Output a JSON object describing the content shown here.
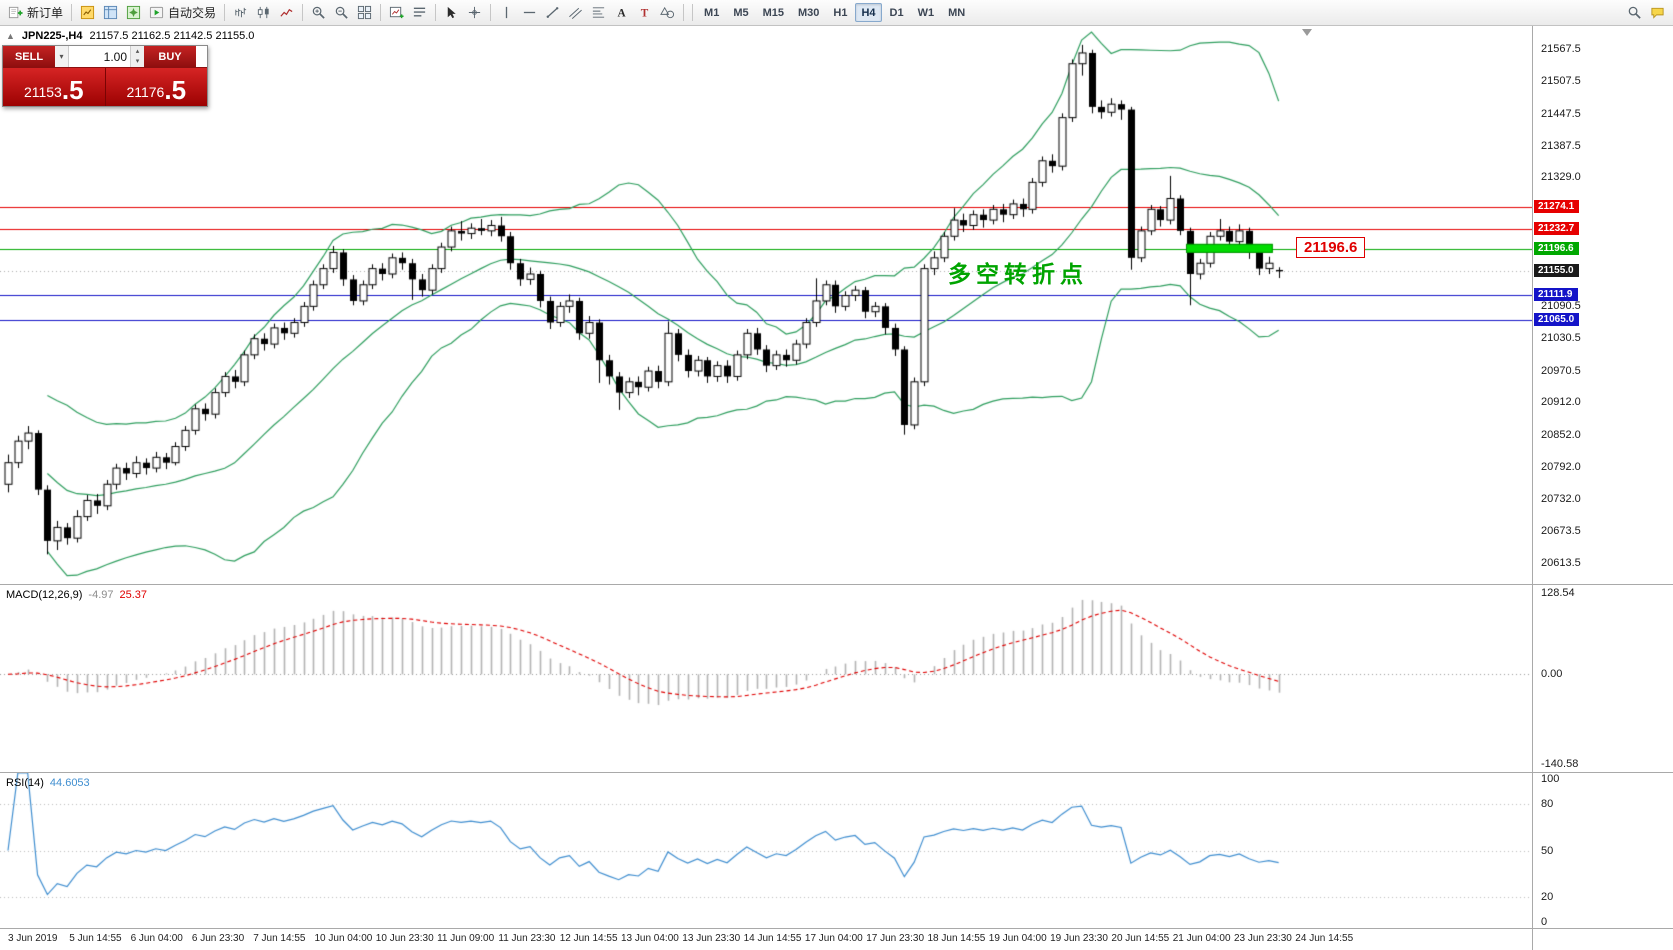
{
  "toolbar": {
    "buttons": [
      {
        "icon": "new-order",
        "label": "新订单"
      },
      {
        "sep": true
      },
      {
        "icon": "market-watch"
      },
      {
        "icon": "data-window"
      },
      {
        "icon": "navigator"
      },
      {
        "icon": "autotrading",
        "label": "自动交易"
      },
      {
        "sep": true
      },
      {
        "icon": "bar-chart"
      },
      {
        "icon": "candlestick-chart"
      },
      {
        "icon": "line-chart"
      },
      {
        "sep": true
      },
      {
        "icon": "zoom-in"
      },
      {
        "icon": "zoom-out"
      },
      {
        "icon": "tile-windows"
      },
      {
        "sep": true
      },
      {
        "icon": "new-chart"
      },
      {
        "icon": "chart-list"
      },
      {
        "sep": true
      },
      {
        "icon": "cursor"
      },
      {
        "icon": "crosshair"
      },
      {
        "sep": true
      },
      {
        "icon": "vertical-line"
      },
      {
        "icon": "horizontal-line"
      },
      {
        "icon": "trendline"
      },
      {
        "icon": "equidistant-channel"
      },
      {
        "icon": "fibonacci"
      },
      {
        "icon": "text"
      },
      {
        "icon": "label"
      },
      {
        "icon": "shapes"
      },
      {
        "sep": true
      }
    ],
    "timeframes": [
      {
        "label": "M1"
      },
      {
        "label": "M5"
      },
      {
        "label": "M15"
      },
      {
        "label": "M30"
      },
      {
        "label": "H1"
      },
      {
        "label": "H4",
        "active": true
      },
      {
        "label": "D1"
      },
      {
        "label": "W1"
      },
      {
        "label": "MN"
      }
    ],
    "right_icons": [
      {
        "icon": "search"
      },
      {
        "icon": "community"
      }
    ]
  },
  "chart": {
    "symbol_info": "JPN225-,H4",
    "ohlc": "21157.5 21162.5 21142.5 21155.0",
    "trade_panel": {
      "sell_label": "SELL",
      "buy_label": "BUY",
      "volume": "1.00",
      "sell_price_main": "21153",
      "sell_price_pips": ".5",
      "buy_price_main": "21176",
      "buy_price_pips": ".5"
    },
    "annotation_text": "多空转折点",
    "price_callout": "21196.6",
    "levels": [
      {
        "price": 21274.1,
        "color": "#e60000"
      },
      {
        "price": 21232.7,
        "color": "#e60000"
      },
      {
        "price": 21196.6,
        "color": "#00a800"
      },
      {
        "price": 21111.9,
        "color": "#1414c8"
      },
      {
        "price": 21065.0,
        "color": "#1414c8"
      }
    ],
    "highlight": {
      "from_index": 120,
      "to_index": 128,
      "price": 21196.6,
      "color": "#00dc00"
    }
  },
  "macd": {
    "name": "MACD(12,26,9)",
    "value_main": "-4.97",
    "value_signal": "25.37",
    "axis_max": "128.54",
    "axis_zero": "0.00",
    "axis_min": "-140.58",
    "range": {
      "max": 128.54,
      "min": -140.58
    }
  },
  "rsi": {
    "name": "RSI(14)",
    "value": "44.6053",
    "levels": [
      80,
      50,
      20
    ],
    "axis": [
      "100",
      "80",
      "50",
      "20",
      "0"
    ]
  },
  "time_axis": [
    "3 Jun 2019",
    "5 Jun 14:55",
    "6 Jun 04:00",
    "6 Jun 23:30",
    "7 Jun 14:55",
    "10 Jun 04:00",
    "10 Jun 23:30",
    "11 Jun 09:00",
    "11 Jun 23:30",
    "12 Jun 14:55",
    "13 Jun 04:00",
    "13 Jun 23:30",
    "14 Jun 14:55",
    "17 Jun 04:00",
    "17 Jun 23:30",
    "18 Jun 14:55",
    "19 Jun 04:00",
    "19 Jun 23:30",
    "20 Jun 14:55",
    "21 Jun 04:00",
    "23 Jun 23:30",
    "24 Jun 14:55"
  ],
  "chart_data": {
    "type": "candlestick",
    "symbol": "JPN225-",
    "timeframe": "H4",
    "title": "JPN225-,H4 21157.5 21162.5 21142.5 21155.0",
    "price_range": {
      "max": 21610,
      "min": 20575
    },
    "axis_price_labels": [
      21567.5,
      21507.5,
      21447.5,
      21387.5,
      21329.0,
      21090.5,
      21030.5,
      20970.5,
      20912.0,
      20852.0,
      20792.0,
      20732.0,
      20673.5,
      20613.5
    ],
    "current_price": 21155.0,
    "indicators": [
      "Bollinger Bands(20,2)",
      "MACD(12,26,9) range 128.54 to -140.58",
      "RSI(14) levels 80/50/20"
    ],
    "horizontal_lines": [
      21274.1,
      21232.7,
      21196.6,
      21111.9,
      21065.0
    ],
    "candles": [
      [
        20760,
        20815,
        20745,
        20800
      ],
      [
        20800,
        20850,
        20790,
        20840
      ],
      [
        20840,
        20868,
        20825,
        20855
      ],
      [
        20855,
        20860,
        20740,
        20750
      ],
      [
        20750,
        20758,
        20630,
        20655
      ],
      [
        20655,
        20692,
        20638,
        20680
      ],
      [
        20680,
        20688,
        20648,
        20660
      ],
      [
        20660,
        20712,
        20652,
        20700
      ],
      [
        20700,
        20740,
        20692,
        20730
      ],
      [
        20730,
        20742,
        20705,
        20720
      ],
      [
        20720,
        20768,
        20712,
        20760
      ],
      [
        20760,
        20798,
        20750,
        20790
      ],
      [
        20790,
        20800,
        20768,
        20780
      ],
      [
        20780,
        20812,
        20772,
        20800
      ],
      [
        20800,
        20808,
        20778,
        20790
      ],
      [
        20790,
        20820,
        20782,
        20810
      ],
      [
        20810,
        20818,
        20788,
        20800
      ],
      [
        20800,
        20838,
        20795,
        20830
      ],
      [
        20830,
        20868,
        20822,
        20860
      ],
      [
        20860,
        20908,
        20852,
        20900
      ],
      [
        20900,
        20910,
        20878,
        20890
      ],
      [
        20890,
        20938,
        20882,
        20930
      ],
      [
        20930,
        20968,
        20922,
        20960
      ],
      [
        20960,
        20972,
        20938,
        20950
      ],
      [
        20950,
        21008,
        20942,
        21000
      ],
      [
        21000,
        21038,
        20992,
        21030
      ],
      [
        21030,
        21040,
        21008,
        21020
      ],
      [
        21020,
        21058,
        21012,
        21050
      ],
      [
        21050,
        21060,
        21028,
        21040
      ],
      [
        21040,
        21068,
        21032,
        21060
      ],
      [
        21060,
        21098,
        21052,
        21090
      ],
      [
        21090,
        21138,
        21082,
        21130
      ],
      [
        21130,
        21168,
        21122,
        21160
      ],
      [
        21160,
        21202,
        21152,
        21190
      ],
      [
        21190,
        21196,
        21128,
        21140
      ],
      [
        21140,
        21148,
        21092,
        21100
      ],
      [
        21100,
        21138,
        21092,
        21130
      ],
      [
        21130,
        21168,
        21122,
        21160
      ],
      [
        21160,
        21170,
        21138,
        21150
      ],
      [
        21150,
        21188,
        21142,
        21180
      ],
      [
        21180,
        21190,
        21158,
        21170
      ],
      [
        21170,
        21178,
        21102,
        21140
      ],
      [
        21140,
        21150,
        21108,
        21120
      ],
      [
        21120,
        21168,
        21112,
        21160
      ],
      [
        21160,
        21208,
        21152,
        21200
      ],
      [
        21200,
        21238,
        21192,
        21230
      ],
      [
        21230,
        21248,
        21212,
        21225
      ],
      [
        21225,
        21244,
        21215,
        21235
      ],
      [
        21235,
        21252,
        21222,
        21230
      ],
      [
        21230,
        21250,
        21220,
        21240
      ],
      [
        21240,
        21256,
        21210,
        21220
      ],
      [
        21220,
        21228,
        21158,
        21170
      ],
      [
        21170,
        21178,
        21128,
        21140
      ],
      [
        21140,
        21162,
        21130,
        21150
      ],
      [
        21150,
        21156,
        21088,
        21100
      ],
      [
        21100,
        21108,
        21048,
        21060
      ],
      [
        21060,
        21098,
        21052,
        21090
      ],
      [
        21090,
        21112,
        21078,
        21100
      ],
      [
        21100,
        21106,
        21028,
        21040
      ],
      [
        21040,
        21072,
        21030,
        21060
      ],
      [
        21060,
        21066,
        20948,
        20990
      ],
      [
        20990,
        21000,
        20945,
        20960
      ],
      [
        20960,
        20968,
        20898,
        20930
      ],
      [
        20930,
        20958,
        20920,
        20950
      ],
      [
        20950,
        20960,
        20925,
        20940
      ],
      [
        20940,
        20978,
        20932,
        20970
      ],
      [
        20970,
        20980,
        20938,
        20950
      ],
      [
        20950,
        21062,
        20942,
        21040
      ],
      [
        21040,
        21048,
        20988,
        21000
      ],
      [
        21000,
        21010,
        20958,
        20970
      ],
      [
        20970,
        20998,
        20960,
        20990
      ],
      [
        20990,
        20996,
        20948,
        20960
      ],
      [
        20960,
        20988,
        20950,
        20980
      ],
      [
        20980,
        20990,
        20948,
        20960
      ],
      [
        20960,
        21008,
        20952,
        21000
      ],
      [
        21000,
        21048,
        20992,
        21040
      ],
      [
        21040,
        21050,
        21000,
        21010
      ],
      [
        21010,
        21018,
        20968,
        20980
      ],
      [
        20980,
        21008,
        20972,
        21000
      ],
      [
        21000,
        21010,
        20978,
        20990
      ],
      [
        20990,
        21028,
        20982,
        21020
      ],
      [
        21020,
        21068,
        21012,
        21060
      ],
      [
        21060,
        21142,
        21052,
        21100
      ],
      [
        21100,
        21138,
        21092,
        21130
      ],
      [
        21130,
        21138,
        21078,
        21090
      ],
      [
        21090,
        21118,
        21082,
        21110
      ],
      [
        21110,
        21128,
        21100,
        21120
      ],
      [
        21120,
        21126,
        21068,
        21080
      ],
      [
        21080,
        21098,
        21070,
        21090
      ],
      [
        21090,
        21096,
        21038,
        21050
      ],
      [
        21050,
        21058,
        20998,
        21010
      ],
      [
        21010,
        21016,
        20852,
        20870
      ],
      [
        20870,
        20958,
        20862,
        20950
      ],
      [
        20950,
        21168,
        20942,
        21160
      ],
      [
        21160,
        21192,
        21148,
        21180
      ],
      [
        21180,
        21228,
        21172,
        21220
      ],
      [
        21220,
        21272,
        21212,
        21250
      ],
      [
        21250,
        21262,
        21228,
        21240
      ],
      [
        21240,
        21268,
        21232,
        21260
      ],
      [
        21260,
        21270,
        21236,
        21250
      ],
      [
        21250,
        21278,
        21242,
        21270
      ],
      [
        21270,
        21280,
        21246,
        21260
      ],
      [
        21260,
        21288,
        21252,
        21280
      ],
      [
        21280,
        21290,
        21256,
        21270
      ],
      [
        21270,
        21328,
        21262,
        21320
      ],
      [
        21320,
        21368,
        21312,
        21360
      ],
      [
        21360,
        21372,
        21338,
        21350
      ],
      [
        21350,
        21448,
        21342,
        21440
      ],
      [
        21440,
        21548,
        21432,
        21540
      ],
      [
        21540,
        21575,
        21518,
        21560
      ],
      [
        21560,
        21566,
        21448,
        21460
      ],
      [
        21460,
        21472,
        21438,
        21450
      ],
      [
        21450,
        21476,
        21442,
        21465
      ],
      [
        21465,
        21472,
        21436,
        21455
      ],
      [
        21455,
        21460,
        21158,
        21180
      ],
      [
        21180,
        21238,
        21172,
        21230
      ],
      [
        21230,
        21278,
        21222,
        21270
      ],
      [
        21270,
        21276,
        21238,
        21250
      ],
      [
        21250,
        21332,
        21242,
        21290
      ],
      [
        21290,
        21296,
        21222,
        21230
      ],
      [
        21230,
        21236,
        21092,
        21150
      ],
      [
        21150,
        21178,
        21140,
        21170
      ],
      [
        21170,
        21228,
        21162,
        21220
      ],
      [
        21220,
        21252,
        21212,
        21230
      ],
      [
        21230,
        21238,
        21198,
        21210
      ],
      [
        21210,
        21242,
        21202,
        21230
      ],
      [
        21230,
        21236,
        21178,
        21190
      ],
      [
        21190,
        21196,
        21148,
        21160
      ],
      [
        21160,
        21182,
        21150,
        21170
      ],
      [
        21157.5,
        21162.5,
        21142.5,
        21155
      ]
    ]
  }
}
